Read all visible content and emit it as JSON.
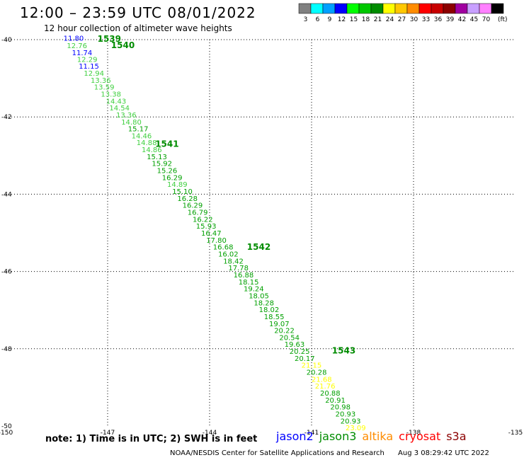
{
  "header": {
    "title": "12:00 – 23:59 UTC 08/01/2022",
    "subtitle": "12 hour collection of altimeter wave heights"
  },
  "legend_scale": {
    "unit": "(ft)",
    "swatches": [
      {
        "color": "#808080",
        "label": "3"
      },
      {
        "color": "#00ffff",
        "label": "6"
      },
      {
        "color": "#00a0ff",
        "label": "9"
      },
      {
        "color": "#0000ff",
        "label": "12"
      },
      {
        "color": "#00ff00",
        "label": "15"
      },
      {
        "color": "#00c800",
        "label": "18"
      },
      {
        "color": "#008c00",
        "label": "21"
      },
      {
        "color": "#ffff00",
        "label": "24"
      },
      {
        "color": "#ffc800",
        "label": "27"
      },
      {
        "color": "#ff8c00",
        "label": "30"
      },
      {
        "color": "#ff0000",
        "label": "33"
      },
      {
        "color": "#c80000",
        "label": "36"
      },
      {
        "color": "#8c0000",
        "label": "39"
      },
      {
        "color": "#a000a0",
        "label": "42"
      },
      {
        "color": "#c8a0ff",
        "label": "45"
      },
      {
        "color": "#ff80ff",
        "label": "70"
      },
      {
        "color": "#000000",
        "label": ""
      }
    ]
  },
  "footer": {
    "note": "note:  1) Time is in UTC;  2) SWH is in feet",
    "satellites": [
      {
        "name": "jason2",
        "color": "#0000ff"
      },
      {
        "name": "jason3",
        "color": "#008c00"
      },
      {
        "name": "altika",
        "color": "#ff8c00"
      },
      {
        "name": "cryosat",
        "color": "#ff0000"
      },
      {
        "name": "s3a",
        "color": "#8c0000"
      }
    ],
    "credit": "NOAA/NESDIS Center for Satellite Applications and Research",
    "timestamp": "Aug  3 08:29:42 UTC 2022"
  },
  "chart_data": {
    "type": "scatter",
    "xlim": [
      -150,
      -135
    ],
    "ylim": [
      -50,
      -40
    ],
    "grid": true,
    "x_ticks": [
      "-150",
      "-147",
      "-144",
      "-141",
      "-138",
      "-135"
    ],
    "y_ticks": [
      "-40",
      "-42",
      "-44",
      "-46",
      "-48",
      "-50"
    ],
    "time_labels": [
      {
        "text": "1539",
        "lon": -147.3,
        "lat": -39.98
      },
      {
        "text": "1540",
        "lon": -146.9,
        "lat": -40.15
      },
      {
        "text": "1541",
        "lon": -145.6,
        "lat": -42.7
      },
      {
        "text": "1542",
        "lon": -142.9,
        "lat": -45.37
      },
      {
        "text": "1543",
        "lon": -140.4,
        "lat": -48.05
      }
    ],
    "points": [
      {
        "lon": -148.3,
        "lat": -39.95,
        "value": "11.80",
        "color": "#0000ff"
      },
      {
        "lon": -148.2,
        "lat": -40.15,
        "value": "12.76",
        "color": "#40d040"
      },
      {
        "lon": -148.05,
        "lat": -40.33,
        "value": "11.74",
        "color": "#0000ff"
      },
      {
        "lon": -147.9,
        "lat": -40.5,
        "value": "12.29",
        "color": "#40d040"
      },
      {
        "lon": -147.85,
        "lat": -40.68,
        "value": "11.15",
        "color": "#0000ff"
      },
      {
        "lon": -147.7,
        "lat": -40.86,
        "value": "12.94",
        "color": "#40d040"
      },
      {
        "lon": -147.5,
        "lat": -41.04,
        "value": "13.36",
        "color": "#40d040"
      },
      {
        "lon": -147.4,
        "lat": -41.22,
        "value": "13.59",
        "color": "#40d040"
      },
      {
        "lon": -147.2,
        "lat": -41.4,
        "value": "13.38",
        "color": "#40d040"
      },
      {
        "lon": -147.05,
        "lat": -41.58,
        "value": "14.43",
        "color": "#40d040"
      },
      {
        "lon": -146.95,
        "lat": -41.76,
        "value": "14.54",
        "color": "#40d040"
      },
      {
        "lon": -146.75,
        "lat": -41.94,
        "value": "13.36",
        "color": "#40d040"
      },
      {
        "lon": -146.6,
        "lat": -42.12,
        "value": "14.80",
        "color": "#40d040"
      },
      {
        "lon": -146.4,
        "lat": -42.3,
        "value": "15.17",
        "color": "#00a000"
      },
      {
        "lon": -146.3,
        "lat": -42.48,
        "value": "14.46",
        "color": "#40d040"
      },
      {
        "lon": -146.15,
        "lat": -42.66,
        "value": "14.88",
        "color": "#40d040"
      },
      {
        "lon": -146.0,
        "lat": -42.84,
        "value": "14.86",
        "color": "#40d040"
      },
      {
        "lon": -145.85,
        "lat": -43.02,
        "value": "15.13",
        "color": "#00a000"
      },
      {
        "lon": -145.7,
        "lat": -43.2,
        "value": "15.92",
        "color": "#00a000"
      },
      {
        "lon": -145.55,
        "lat": -43.38,
        "value": "15.26",
        "color": "#00a000"
      },
      {
        "lon": -145.4,
        "lat": -43.56,
        "value": "16.29",
        "color": "#00a000"
      },
      {
        "lon": -145.25,
        "lat": -43.74,
        "value": "14.89",
        "color": "#40d040"
      },
      {
        "lon": -145.1,
        "lat": -43.92,
        "value": "15.10",
        "color": "#00a000"
      },
      {
        "lon": -144.95,
        "lat": -44.1,
        "value": "16.28",
        "color": "#00a000"
      },
      {
        "lon": -144.8,
        "lat": -44.28,
        "value": "16.29",
        "color": "#00a000"
      },
      {
        "lon": -144.65,
        "lat": -44.46,
        "value": "16.79",
        "color": "#00a000"
      },
      {
        "lon": -144.5,
        "lat": -44.64,
        "value": "16.22",
        "color": "#00a000"
      },
      {
        "lon": -144.4,
        "lat": -44.82,
        "value": "15.93",
        "color": "#00a000"
      },
      {
        "lon": -144.25,
        "lat": -45.0,
        "value": "16.47",
        "color": "#00a000"
      },
      {
        "lon": -144.1,
        "lat": -45.18,
        "value": "17.80",
        "color": "#00a000"
      },
      {
        "lon": -143.9,
        "lat": -45.36,
        "value": "16.68",
        "color": "#00a000"
      },
      {
        "lon": -143.75,
        "lat": -45.54,
        "value": "16.02",
        "color": "#00a000"
      },
      {
        "lon": -143.6,
        "lat": -45.72,
        "value": "18.42",
        "color": "#00a000"
      },
      {
        "lon": -143.45,
        "lat": -45.9,
        "value": "17.78",
        "color": "#00a000"
      },
      {
        "lon": -143.3,
        "lat": -46.08,
        "value": "16.88",
        "color": "#00a000"
      },
      {
        "lon": -143.15,
        "lat": -46.26,
        "value": "18.15",
        "color": "#00a000"
      },
      {
        "lon": -143.0,
        "lat": -46.44,
        "value": "19.24",
        "color": "#00a000"
      },
      {
        "lon": -142.85,
        "lat": -46.62,
        "value": "18.05",
        "color": "#00a000"
      },
      {
        "lon": -142.7,
        "lat": -46.8,
        "value": "18.28",
        "color": "#00a000"
      },
      {
        "lon": -142.55,
        "lat": -46.98,
        "value": "18.02",
        "color": "#00a000"
      },
      {
        "lon": -142.4,
        "lat": -47.16,
        "value": "18.55",
        "color": "#00a000"
      },
      {
        "lon": -142.25,
        "lat": -47.34,
        "value": "19.07",
        "color": "#00a000"
      },
      {
        "lon": -142.1,
        "lat": -47.52,
        "value": "20.22",
        "color": "#00a000"
      },
      {
        "lon": -141.95,
        "lat": -47.7,
        "value": "20.54",
        "color": "#00a000"
      },
      {
        "lon": -141.8,
        "lat": -47.88,
        "value": "19.63",
        "color": "#00a000"
      },
      {
        "lon": -141.65,
        "lat": -48.06,
        "value": "20.25",
        "color": "#00a000"
      },
      {
        "lon": -141.5,
        "lat": -48.24,
        "value": "20.17",
        "color": "#00a000"
      },
      {
        "lon": -141.3,
        "lat": -48.42,
        "value": "21.15",
        "color": "#ffff00"
      },
      {
        "lon": -141.15,
        "lat": -48.6,
        "value": "20.28",
        "color": "#00a000"
      },
      {
        "lon": -141.0,
        "lat": -48.78,
        "value": "21.68",
        "color": "#ffff00"
      },
      {
        "lon": -140.9,
        "lat": -48.96,
        "value": "21.76",
        "color": "#ffff00"
      },
      {
        "lon": -140.75,
        "lat": -49.14,
        "value": "20.88",
        "color": "#00a000"
      },
      {
        "lon": -140.6,
        "lat": -49.32,
        "value": "20.91",
        "color": "#00a000"
      },
      {
        "lon": -140.45,
        "lat": -49.5,
        "value": "20.98",
        "color": "#00a000"
      },
      {
        "lon": -140.3,
        "lat": -49.68,
        "value": "20.93",
        "color": "#00a000"
      },
      {
        "lon": -140.15,
        "lat": -49.86,
        "value": "20.93",
        "color": "#00a000"
      },
      {
        "lon": -140.0,
        "lat": -50.04,
        "value": "23.09",
        "color": "#ffff00"
      }
    ]
  }
}
